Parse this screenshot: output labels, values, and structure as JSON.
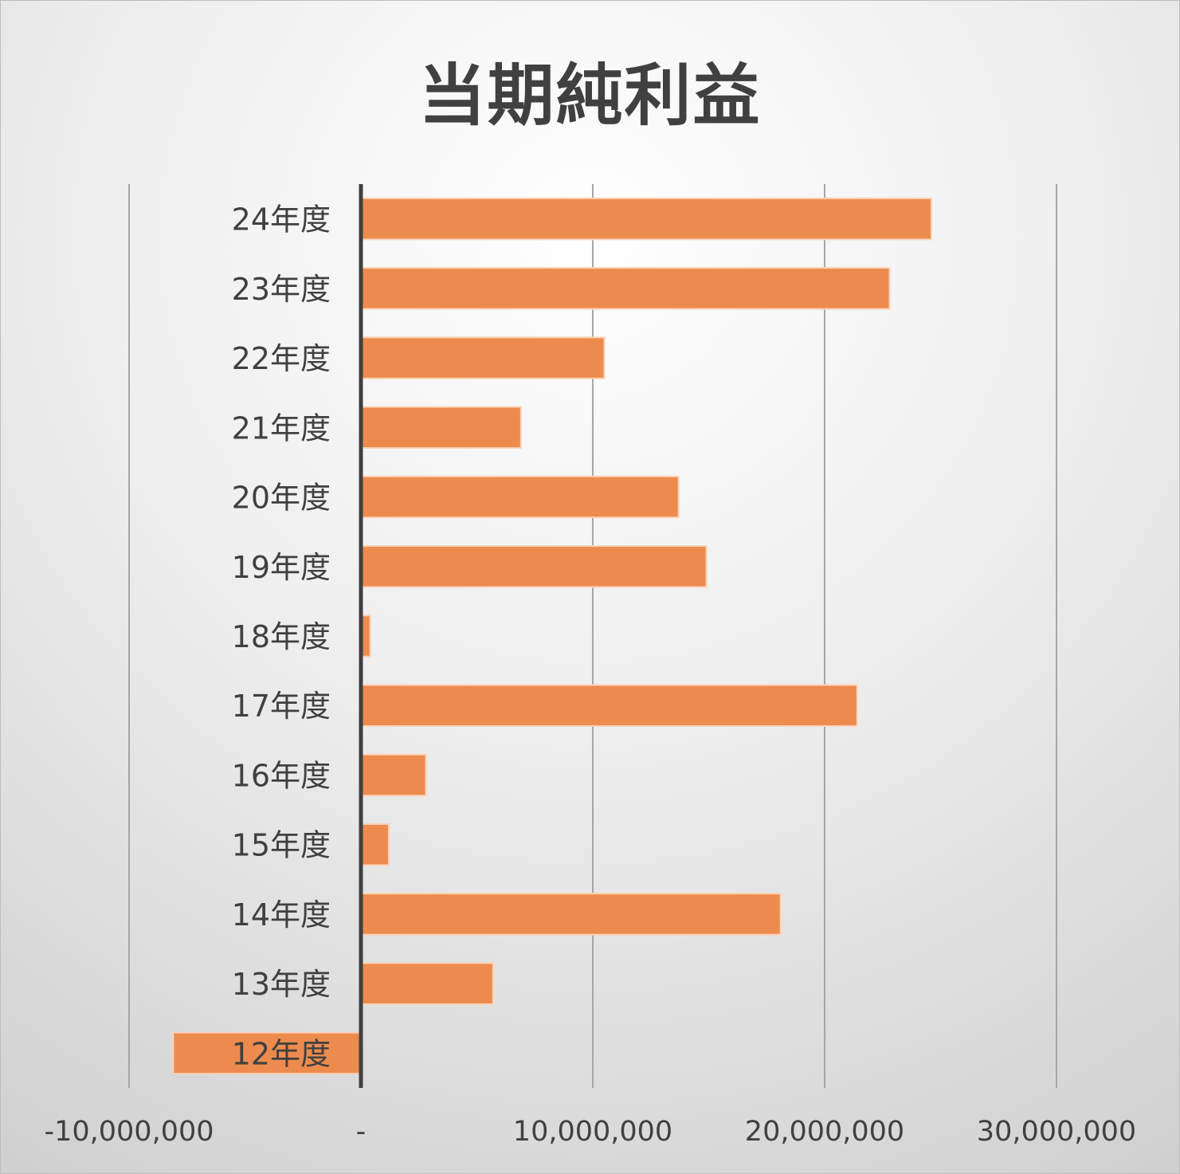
{
  "chart_data": {
    "type": "bar",
    "orientation": "horizontal",
    "title": "当期純利益",
    "categories": [
      "24年度",
      "23年度",
      "22年度",
      "21年度",
      "20年度",
      "19年度",
      "18年度",
      "17年度",
      "16年度",
      "15年度",
      "14年度",
      "13年度",
      "12年度"
    ],
    "values": [
      24600000,
      22800000,
      10500000,
      6900000,
      13700000,
      14900000,
      400000,
      21400000,
      2800000,
      1200000,
      18100000,
      5700000,
      -8100000
    ],
    "xlim": [
      -10000000,
      30000000
    ],
    "xticks": [
      -10000000,
      0,
      10000000,
      20000000,
      30000000
    ],
    "xtick_labels": [
      "-10,000,000",
      "-",
      "10,000,000",
      "20,000,000",
      "30,000,000"
    ],
    "grid": "vertical",
    "legend": "none",
    "bar_color": "#ED8B4E",
    "bar_edge_color": "#FBD3B6",
    "axis_color": "#404040",
    "grid_color": "#A6A6A6"
  }
}
